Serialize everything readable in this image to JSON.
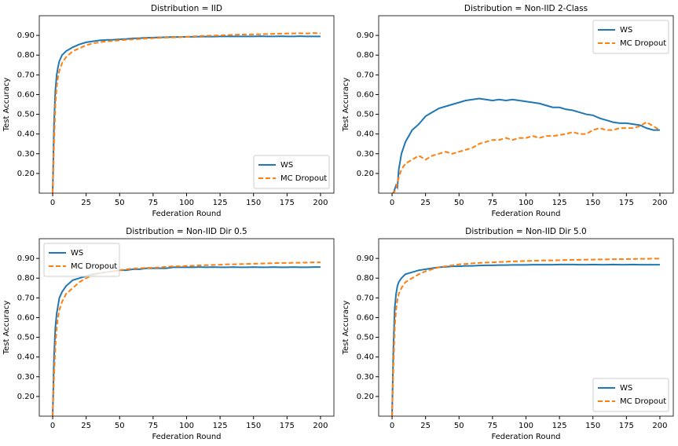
{
  "chart_data": [
    {
      "type": "line",
      "title": "Distribution = IID",
      "xlabel": "Federation Round",
      "ylabel": "Test Accuracy",
      "legend": "lower right",
      "grid": false,
      "xlim": [
        -10,
        210
      ],
      "xticks": [
        0,
        25,
        50,
        75,
        100,
        125,
        150,
        175,
        200
      ],
      "ylim": [
        0.1,
        1.0
      ],
      "yticks": [
        {
          "value": 0.2,
          "label": "0.20"
        },
        {
          "value": 0.3,
          "label": "0.30"
        },
        {
          "value": 0.4,
          "label": "0.40"
        },
        {
          "value": 0.5,
          "label": "0.50"
        },
        {
          "value": 0.6,
          "label": "0.60"
        },
        {
          "value": 0.7,
          "label": "0.70"
        },
        {
          "value": 0.8,
          "label": "0.80"
        },
        {
          "value": 0.9,
          "label": "0.90"
        }
      ],
      "x": [
        0,
        1,
        2,
        3,
        4,
        5,
        7,
        10,
        15,
        20,
        25,
        30,
        35,
        40,
        45,
        50,
        55,
        60,
        65,
        70,
        75,
        80,
        85,
        90,
        95,
        100,
        105,
        110,
        115,
        120,
        125,
        130,
        135,
        140,
        145,
        150,
        155,
        160,
        165,
        170,
        175,
        180,
        185,
        190,
        195,
        200
      ],
      "series": [
        {
          "name": "WS",
          "color": "#1f77b4",
          "linestyle": "solid",
          "values": [
            0.1,
            0.45,
            0.62,
            0.7,
            0.74,
            0.77,
            0.8,
            0.82,
            0.84,
            0.855,
            0.865,
            0.87,
            0.875,
            0.877,
            0.878,
            0.88,
            0.882,
            0.885,
            0.886,
            0.888,
            0.889,
            0.89,
            0.891,
            0.892,
            0.892,
            0.893,
            0.893,
            0.894,
            0.894,
            0.894,
            0.895,
            0.895,
            0.895,
            0.895,
            0.895,
            0.895,
            0.896,
            0.895,
            0.895,
            0.896,
            0.895,
            0.895,
            0.896,
            0.895,
            0.895,
            0.895
          ]
        },
        {
          "name": "MC Dropout",
          "color": "#ff7f0e",
          "linestyle": "dashed",
          "values": [
            0.1,
            0.35,
            0.55,
            0.64,
            0.69,
            0.72,
            0.76,
            0.79,
            0.82,
            0.835,
            0.85,
            0.86,
            0.865,
            0.87,
            0.872,
            0.875,
            0.878,
            0.88,
            0.882,
            0.885,
            0.886,
            0.888,
            0.889,
            0.89,
            0.891,
            0.893,
            0.895,
            0.897,
            0.898,
            0.899,
            0.9,
            0.902,
            0.903,
            0.904,
            0.905,
            0.905,
            0.906,
            0.907,
            0.908,
            0.909,
            0.91,
            0.91,
            0.911,
            0.91,
            0.912,
            0.91
          ]
        }
      ]
    },
    {
      "type": "line",
      "title": "Distribution = Non-IID 2-Class",
      "xlabel": "Federation Round",
      "ylabel": "Test Accuracy",
      "legend": "upper right",
      "grid": false,
      "xlim": [
        -10,
        210
      ],
      "xticks": [
        0,
        25,
        50,
        75,
        100,
        125,
        150,
        175,
        200
      ],
      "ylim": [
        0.1,
        1.0
      ],
      "yticks": [
        {
          "value": 0.2,
          "label": "0.20"
        },
        {
          "value": 0.3,
          "label": "0.30"
        },
        {
          "value": 0.4,
          "label": "0.40"
        },
        {
          "value": 0.5,
          "label": "0.50"
        },
        {
          "value": 0.6,
          "label": "0.60"
        },
        {
          "value": 0.7,
          "label": "0.70"
        },
        {
          "value": 0.8,
          "label": "0.80"
        },
        {
          "value": 0.9,
          "label": "0.90"
        }
      ],
      "x": [
        0,
        1,
        2,
        3,
        4,
        5,
        7,
        10,
        15,
        20,
        25,
        30,
        35,
        40,
        45,
        50,
        55,
        60,
        65,
        70,
        75,
        80,
        85,
        90,
        95,
        100,
        105,
        110,
        115,
        120,
        125,
        130,
        135,
        140,
        145,
        150,
        155,
        160,
        165,
        170,
        175,
        180,
        185,
        190,
        195,
        200
      ],
      "series": [
        {
          "name": "WS",
          "color": "#1f77b4",
          "linestyle": "solid",
          "values": [
            0.1,
            0.1,
            0.12,
            0.14,
            0.13,
            0.22,
            0.3,
            0.36,
            0.42,
            0.45,
            0.49,
            0.51,
            0.53,
            0.54,
            0.55,
            0.56,
            0.57,
            0.575,
            0.58,
            0.575,
            0.57,
            0.575,
            0.57,
            0.575,
            0.57,
            0.565,
            0.56,
            0.555,
            0.545,
            0.535,
            0.535,
            0.525,
            0.52,
            0.51,
            0.5,
            0.495,
            0.48,
            0.47,
            0.46,
            0.455,
            0.455,
            0.45,
            0.445,
            0.43,
            0.42,
            0.42
          ]
        },
        {
          "name": "MC Dropout",
          "color": "#ff7f0e",
          "linestyle": "dashed",
          "values": [
            0.1,
            0.1,
            0.11,
            0.12,
            0.15,
            0.18,
            0.22,
            0.25,
            0.27,
            0.29,
            0.27,
            0.29,
            0.3,
            0.31,
            0.3,
            0.31,
            0.32,
            0.33,
            0.35,
            0.36,
            0.37,
            0.37,
            0.38,
            0.37,
            0.38,
            0.38,
            0.39,
            0.38,
            0.39,
            0.39,
            0.395,
            0.4,
            0.41,
            0.4,
            0.4,
            0.42,
            0.43,
            0.42,
            0.42,
            0.43,
            0.43,
            0.43,
            0.44,
            0.46,
            0.44,
            0.42
          ]
        }
      ]
    },
    {
      "type": "line",
      "title": "Distribution = Non-IID Dir 0.5",
      "xlabel": "Federation Round",
      "ylabel": "Test Accuracy",
      "legend": "upper left",
      "grid": false,
      "xlim": [
        -10,
        210
      ],
      "xticks": [
        0,
        25,
        50,
        75,
        100,
        125,
        150,
        175,
        200
      ],
      "ylim": [
        0.1,
        1.0
      ],
      "yticks": [
        {
          "value": 0.2,
          "label": "0.20"
        },
        {
          "value": 0.3,
          "label": "0.30"
        },
        {
          "value": 0.4,
          "label": "0.40"
        },
        {
          "value": 0.5,
          "label": "0.50"
        },
        {
          "value": 0.6,
          "label": "0.60"
        },
        {
          "value": 0.7,
          "label": "0.70"
        },
        {
          "value": 0.8,
          "label": "0.80"
        },
        {
          "value": 0.9,
          "label": "0.90"
        }
      ],
      "x": [
        0,
        1,
        2,
        3,
        4,
        5,
        7,
        10,
        15,
        20,
        25,
        30,
        35,
        40,
        45,
        50,
        55,
        60,
        65,
        70,
        75,
        80,
        85,
        90,
        95,
        100,
        105,
        110,
        115,
        120,
        125,
        130,
        135,
        140,
        145,
        150,
        155,
        160,
        165,
        170,
        175,
        180,
        185,
        190,
        195,
        200
      ],
      "series": [
        {
          "name": "WS",
          "color": "#1f77b4",
          "linestyle": "solid",
          "values": [
            0.1,
            0.4,
            0.55,
            0.62,
            0.66,
            0.7,
            0.73,
            0.76,
            0.79,
            0.8,
            0.81,
            0.82,
            0.825,
            0.83,
            0.835,
            0.84,
            0.84,
            0.845,
            0.845,
            0.85,
            0.85,
            0.85,
            0.85,
            0.855,
            0.855,
            0.855,
            0.855,
            0.856,
            0.855,
            0.856,
            0.855,
            0.855,
            0.856,
            0.855,
            0.855,
            0.856,
            0.855,
            0.855,
            0.856,
            0.855,
            0.855,
            0.856,
            0.855,
            0.855,
            0.856,
            0.856
          ]
        },
        {
          "name": "MC Dropout",
          "color": "#ff7f0e",
          "linestyle": "dashed",
          "values": [
            0.1,
            0.3,
            0.45,
            0.55,
            0.6,
            0.64,
            0.68,
            0.72,
            0.75,
            0.78,
            0.8,
            0.815,
            0.825,
            0.83,
            0.835,
            0.84,
            0.845,
            0.848,
            0.85,
            0.852,
            0.853,
            0.855,
            0.857,
            0.86,
            0.86,
            0.862,
            0.863,
            0.865,
            0.866,
            0.867,
            0.868,
            0.87,
            0.87,
            0.871,
            0.872,
            0.873,
            0.874,
            0.875,
            0.876,
            0.877,
            0.877,
            0.878,
            0.878,
            0.879,
            0.88,
            0.88
          ]
        }
      ]
    },
    {
      "type": "line",
      "title": "Distribution = Non-IID Dir 5.0",
      "xlabel": "Federation Round",
      "ylabel": "Test Accuracy",
      "legend": "lower right",
      "grid": false,
      "xlim": [
        -10,
        210
      ],
      "xticks": [
        0,
        25,
        50,
        75,
        100,
        125,
        150,
        175,
        200
      ],
      "ylim": [
        0.1,
        1.0
      ],
      "yticks": [
        {
          "value": 0.2,
          "label": "0.20"
        },
        {
          "value": 0.3,
          "label": "0.30"
        },
        {
          "value": 0.4,
          "label": "0.40"
        },
        {
          "value": 0.5,
          "label": "0.50"
        },
        {
          "value": 0.6,
          "label": "0.60"
        },
        {
          "value": 0.7,
          "label": "0.70"
        },
        {
          "value": 0.8,
          "label": "0.80"
        },
        {
          "value": 0.9,
          "label": "0.90"
        }
      ],
      "x": [
        0,
        1,
        2,
        3,
        4,
        5,
        7,
        10,
        15,
        20,
        25,
        30,
        35,
        40,
        45,
        50,
        55,
        60,
        65,
        70,
        75,
        80,
        85,
        90,
        95,
        100,
        105,
        110,
        115,
        120,
        125,
        130,
        135,
        140,
        145,
        150,
        155,
        160,
        165,
        170,
        175,
        180,
        185,
        190,
        195,
        200
      ],
      "series": [
        {
          "name": "WS",
          "color": "#1f77b4",
          "linestyle": "solid",
          "values": [
            0.1,
            0.45,
            0.65,
            0.72,
            0.76,
            0.78,
            0.8,
            0.82,
            0.83,
            0.84,
            0.845,
            0.85,
            0.855,
            0.857,
            0.86,
            0.86,
            0.862,
            0.862,
            0.864,
            0.865,
            0.865,
            0.866,
            0.866,
            0.867,
            0.867,
            0.867,
            0.868,
            0.868,
            0.868,
            0.868,
            0.869,
            0.869,
            0.869,
            0.868,
            0.868,
            0.869,
            0.868,
            0.868,
            0.869,
            0.868,
            0.868,
            0.869,
            0.868,
            0.868,
            0.868,
            0.868
          ]
        },
        {
          "name": "MC Dropout",
          "color": "#ff7f0e",
          "linestyle": "dashed",
          "values": [
            0.1,
            0.35,
            0.55,
            0.64,
            0.69,
            0.72,
            0.75,
            0.78,
            0.8,
            0.82,
            0.835,
            0.845,
            0.855,
            0.86,
            0.865,
            0.87,
            0.872,
            0.875,
            0.877,
            0.879,
            0.88,
            0.882,
            0.883,
            0.885,
            0.886,
            0.887,
            0.888,
            0.889,
            0.89,
            0.89,
            0.891,
            0.892,
            0.893,
            0.893,
            0.894,
            0.894,
            0.895,
            0.895,
            0.896,
            0.896,
            0.897,
            0.897,
            0.898,
            0.898,
            0.899,
            0.899
          ]
        }
      ]
    }
  ]
}
